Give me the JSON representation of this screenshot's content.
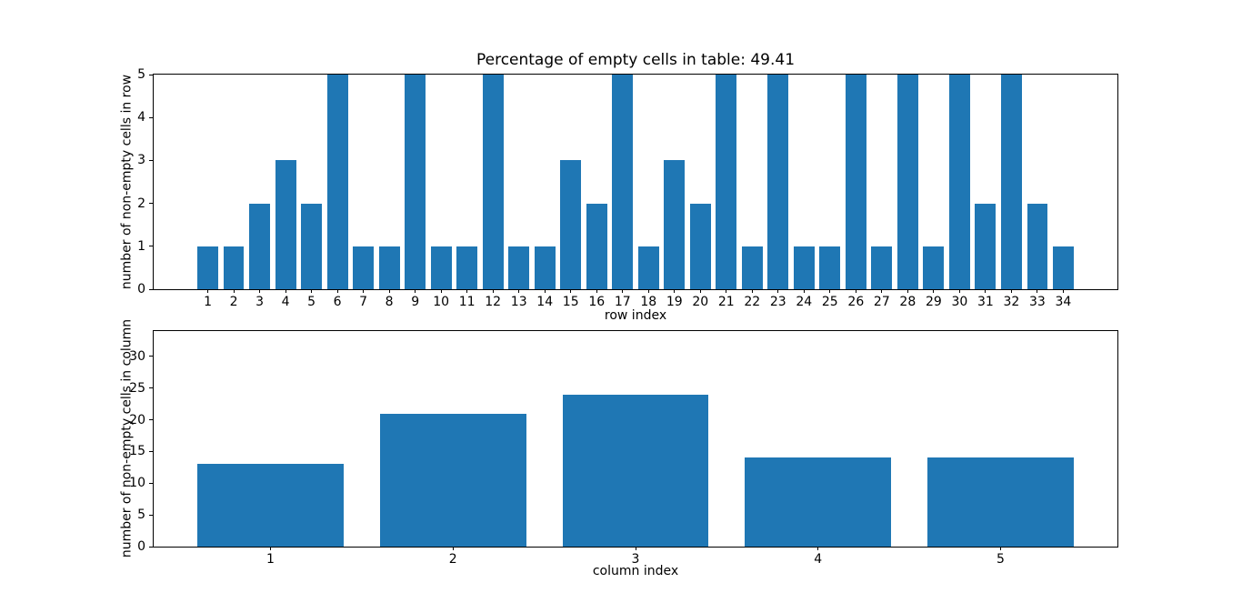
{
  "figure": {
    "background_color": "#ffffff",
    "axis_color": "#000000",
    "text_color": "#000000"
  },
  "chart_data": [
    {
      "type": "bar",
      "title": "Percentage of empty cells in table: 49.41",
      "xlabel": "row index",
      "ylabel": "number of non-empty cells in row",
      "categories": [
        1,
        2,
        3,
        4,
        5,
        6,
        7,
        8,
        9,
        10,
        11,
        12,
        13,
        14,
        15,
        16,
        17,
        18,
        19,
        20,
        21,
        22,
        23,
        24,
        25,
        26,
        27,
        28,
        29,
        30,
        31,
        32,
        33,
        34
      ],
      "values": [
        1,
        1,
        2,
        3,
        2,
        5,
        1,
        1,
        5,
        1,
        1,
        5,
        1,
        1,
        3,
        2,
        5,
        1,
        3,
        2,
        5,
        1,
        5,
        1,
        1,
        5,
        1,
        5,
        1,
        5,
        2,
        5,
        2,
        1
      ],
      "xlim": [
        -1.09,
        36.09
      ],
      "ylim": [
        0,
        5
      ],
      "yticks": [
        0,
        1,
        2,
        3,
        4,
        5
      ],
      "bar_width": 0.8,
      "bar_color": "#1f77b4",
      "grid": false,
      "legend": null
    },
    {
      "type": "bar",
      "title": "",
      "xlabel": "column index",
      "ylabel": "number of non-empty cells in column",
      "categories": [
        1,
        2,
        3,
        4,
        5
      ],
      "values": [
        13,
        21,
        24,
        14,
        14
      ],
      "xlim": [
        0.36,
        5.64
      ],
      "ylim": [
        0,
        34
      ],
      "yticks": [
        0,
        5,
        10,
        15,
        20,
        25,
        30
      ],
      "bar_width": 0.8,
      "bar_color": "#1f77b4",
      "grid": false,
      "legend": null
    }
  ]
}
